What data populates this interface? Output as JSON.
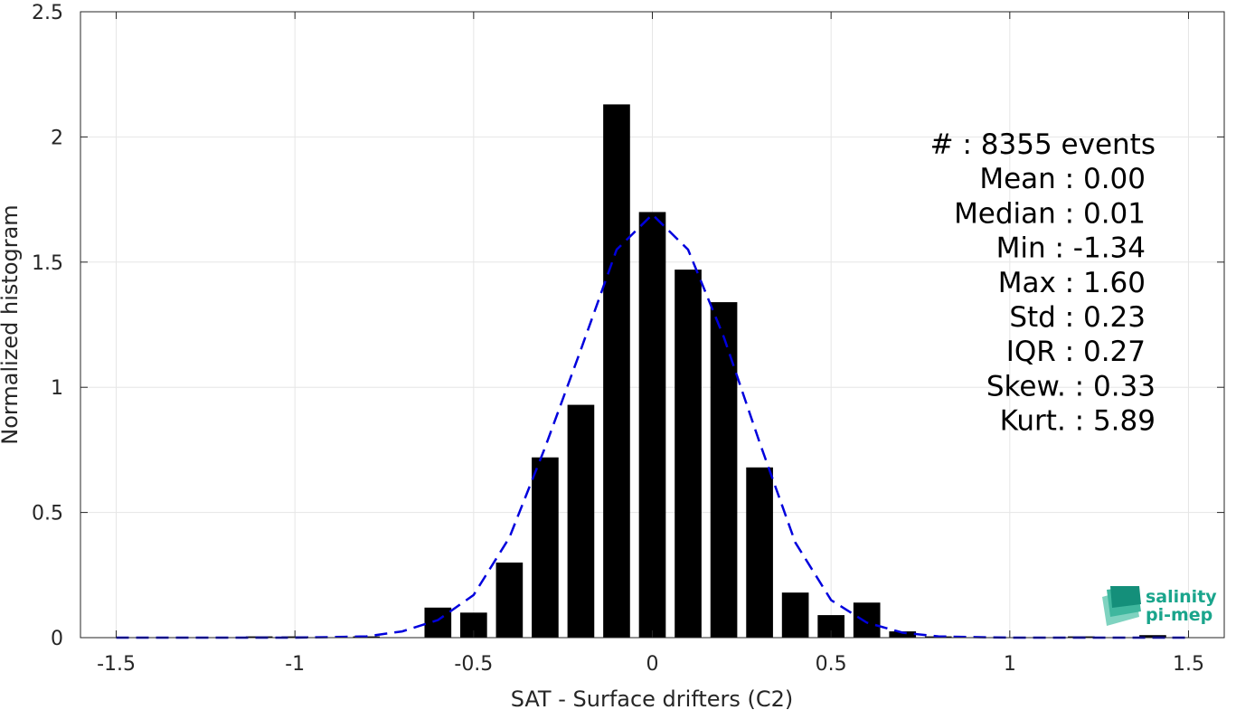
{
  "chart_data": {
    "type": "bar",
    "xlabel": "SAT - Surface drifters (C2)",
    "ylabel": "Normalized histogram",
    "xlim": [
      -1.6,
      1.6
    ],
    "ylim": [
      0,
      2.5
    ],
    "xticks": [
      -1.5,
      -1,
      -0.5,
      0,
      0.5,
      1,
      1.5
    ],
    "xtick_labels": [
      "-1.5",
      "-1",
      "-0.5",
      "0",
      "0.5",
      "1",
      "1.5"
    ],
    "yticks": [
      0,
      0.5,
      1,
      1.5,
      2,
      2.5
    ],
    "ytick_labels": [
      "0",
      "0.5",
      "1",
      "1.5",
      "2",
      "2.5"
    ],
    "grid": true,
    "bar_color": "#000000",
    "bar_width": 0.075,
    "series": [
      {
        "values": [
          {
            "x": -1.5,
            "y": 0.0
          },
          {
            "x": -1.4,
            "y": 0.0
          },
          {
            "x": -1.3,
            "y": 0.0
          },
          {
            "x": -1.2,
            "y": 0.0
          },
          {
            "x": -1.1,
            "y": 0.005
          },
          {
            "x": -1.0,
            "y": 0.005
          },
          {
            "x": -0.9,
            "y": 0.0
          },
          {
            "x": -0.8,
            "y": 0.005
          },
          {
            "x": -0.7,
            "y": 0.0
          },
          {
            "x": -0.6,
            "y": 0.12
          },
          {
            "x": -0.5,
            "y": 0.1
          },
          {
            "x": -0.4,
            "y": 0.3
          },
          {
            "x": -0.3,
            "y": 0.72
          },
          {
            "x": -0.2,
            "y": 0.93
          },
          {
            "x": -0.1,
            "y": 2.13
          },
          {
            "x": 0.0,
            "y": 1.7
          },
          {
            "x": 0.1,
            "y": 1.47
          },
          {
            "x": 0.2,
            "y": 1.34
          },
          {
            "x": 0.3,
            "y": 0.68
          },
          {
            "x": 0.4,
            "y": 0.18
          },
          {
            "x": 0.5,
            "y": 0.09
          },
          {
            "x": 0.6,
            "y": 0.14
          },
          {
            "x": 0.7,
            "y": 0.025
          },
          {
            "x": 0.8,
            "y": 0.005
          },
          {
            "x": 0.9,
            "y": 0.0
          },
          {
            "x": 1.0,
            "y": 0.0
          },
          {
            "x": 1.1,
            "y": 0.0
          },
          {
            "x": 1.2,
            "y": 0.005
          },
          {
            "x": 1.3,
            "y": 0.0
          },
          {
            "x": 1.4,
            "y": 0.01
          },
          {
            "x": 1.5,
            "y": 0.0
          }
        ]
      }
    ],
    "fit_curve": {
      "color": "#0000dd",
      "style": "dashed",
      "points": [
        [
          -1.5,
          0.0
        ],
        [
          -1.4,
          0.0
        ],
        [
          -1.3,
          0.0
        ],
        [
          -1.2,
          0.0
        ],
        [
          -1.1,
          0.0
        ],
        [
          -1.0,
          0.0
        ],
        [
          -0.9,
          0.002
        ],
        [
          -0.8,
          0.005
        ],
        [
          -0.7,
          0.025
        ],
        [
          -0.6,
          0.07
        ],
        [
          -0.5,
          0.17
        ],
        [
          -0.4,
          0.4
        ],
        [
          -0.3,
          0.76
        ],
        [
          -0.2,
          1.15
        ],
        [
          -0.1,
          1.55
        ],
        [
          0.0,
          1.69
        ],
        [
          0.1,
          1.55
        ],
        [
          0.2,
          1.2
        ],
        [
          0.3,
          0.78
        ],
        [
          0.4,
          0.38
        ],
        [
          0.5,
          0.15
        ],
        [
          0.6,
          0.06
        ],
        [
          0.7,
          0.02
        ],
        [
          0.8,
          0.005
        ],
        [
          0.9,
          0.002
        ],
        [
          1.0,
          0.0
        ],
        [
          1.1,
          0.0
        ],
        [
          1.2,
          0.0
        ],
        [
          1.3,
          0.0
        ],
        [
          1.4,
          0.0
        ],
        [
          1.5,
          0.0
        ]
      ]
    },
    "annotations": [
      "#  : 8355 events",
      "Mean : 0.00",
      "Median : 0.01",
      "Min : -1.34",
      "Max : 1.60",
      "Std : 0.23",
      "IQR : 0.27",
      "Skew. : 0.33",
      "Kurt. : 5.89"
    ]
  },
  "logo": {
    "line1": "salinity",
    "line2": "pi-mep",
    "color": "#1aa58c"
  }
}
